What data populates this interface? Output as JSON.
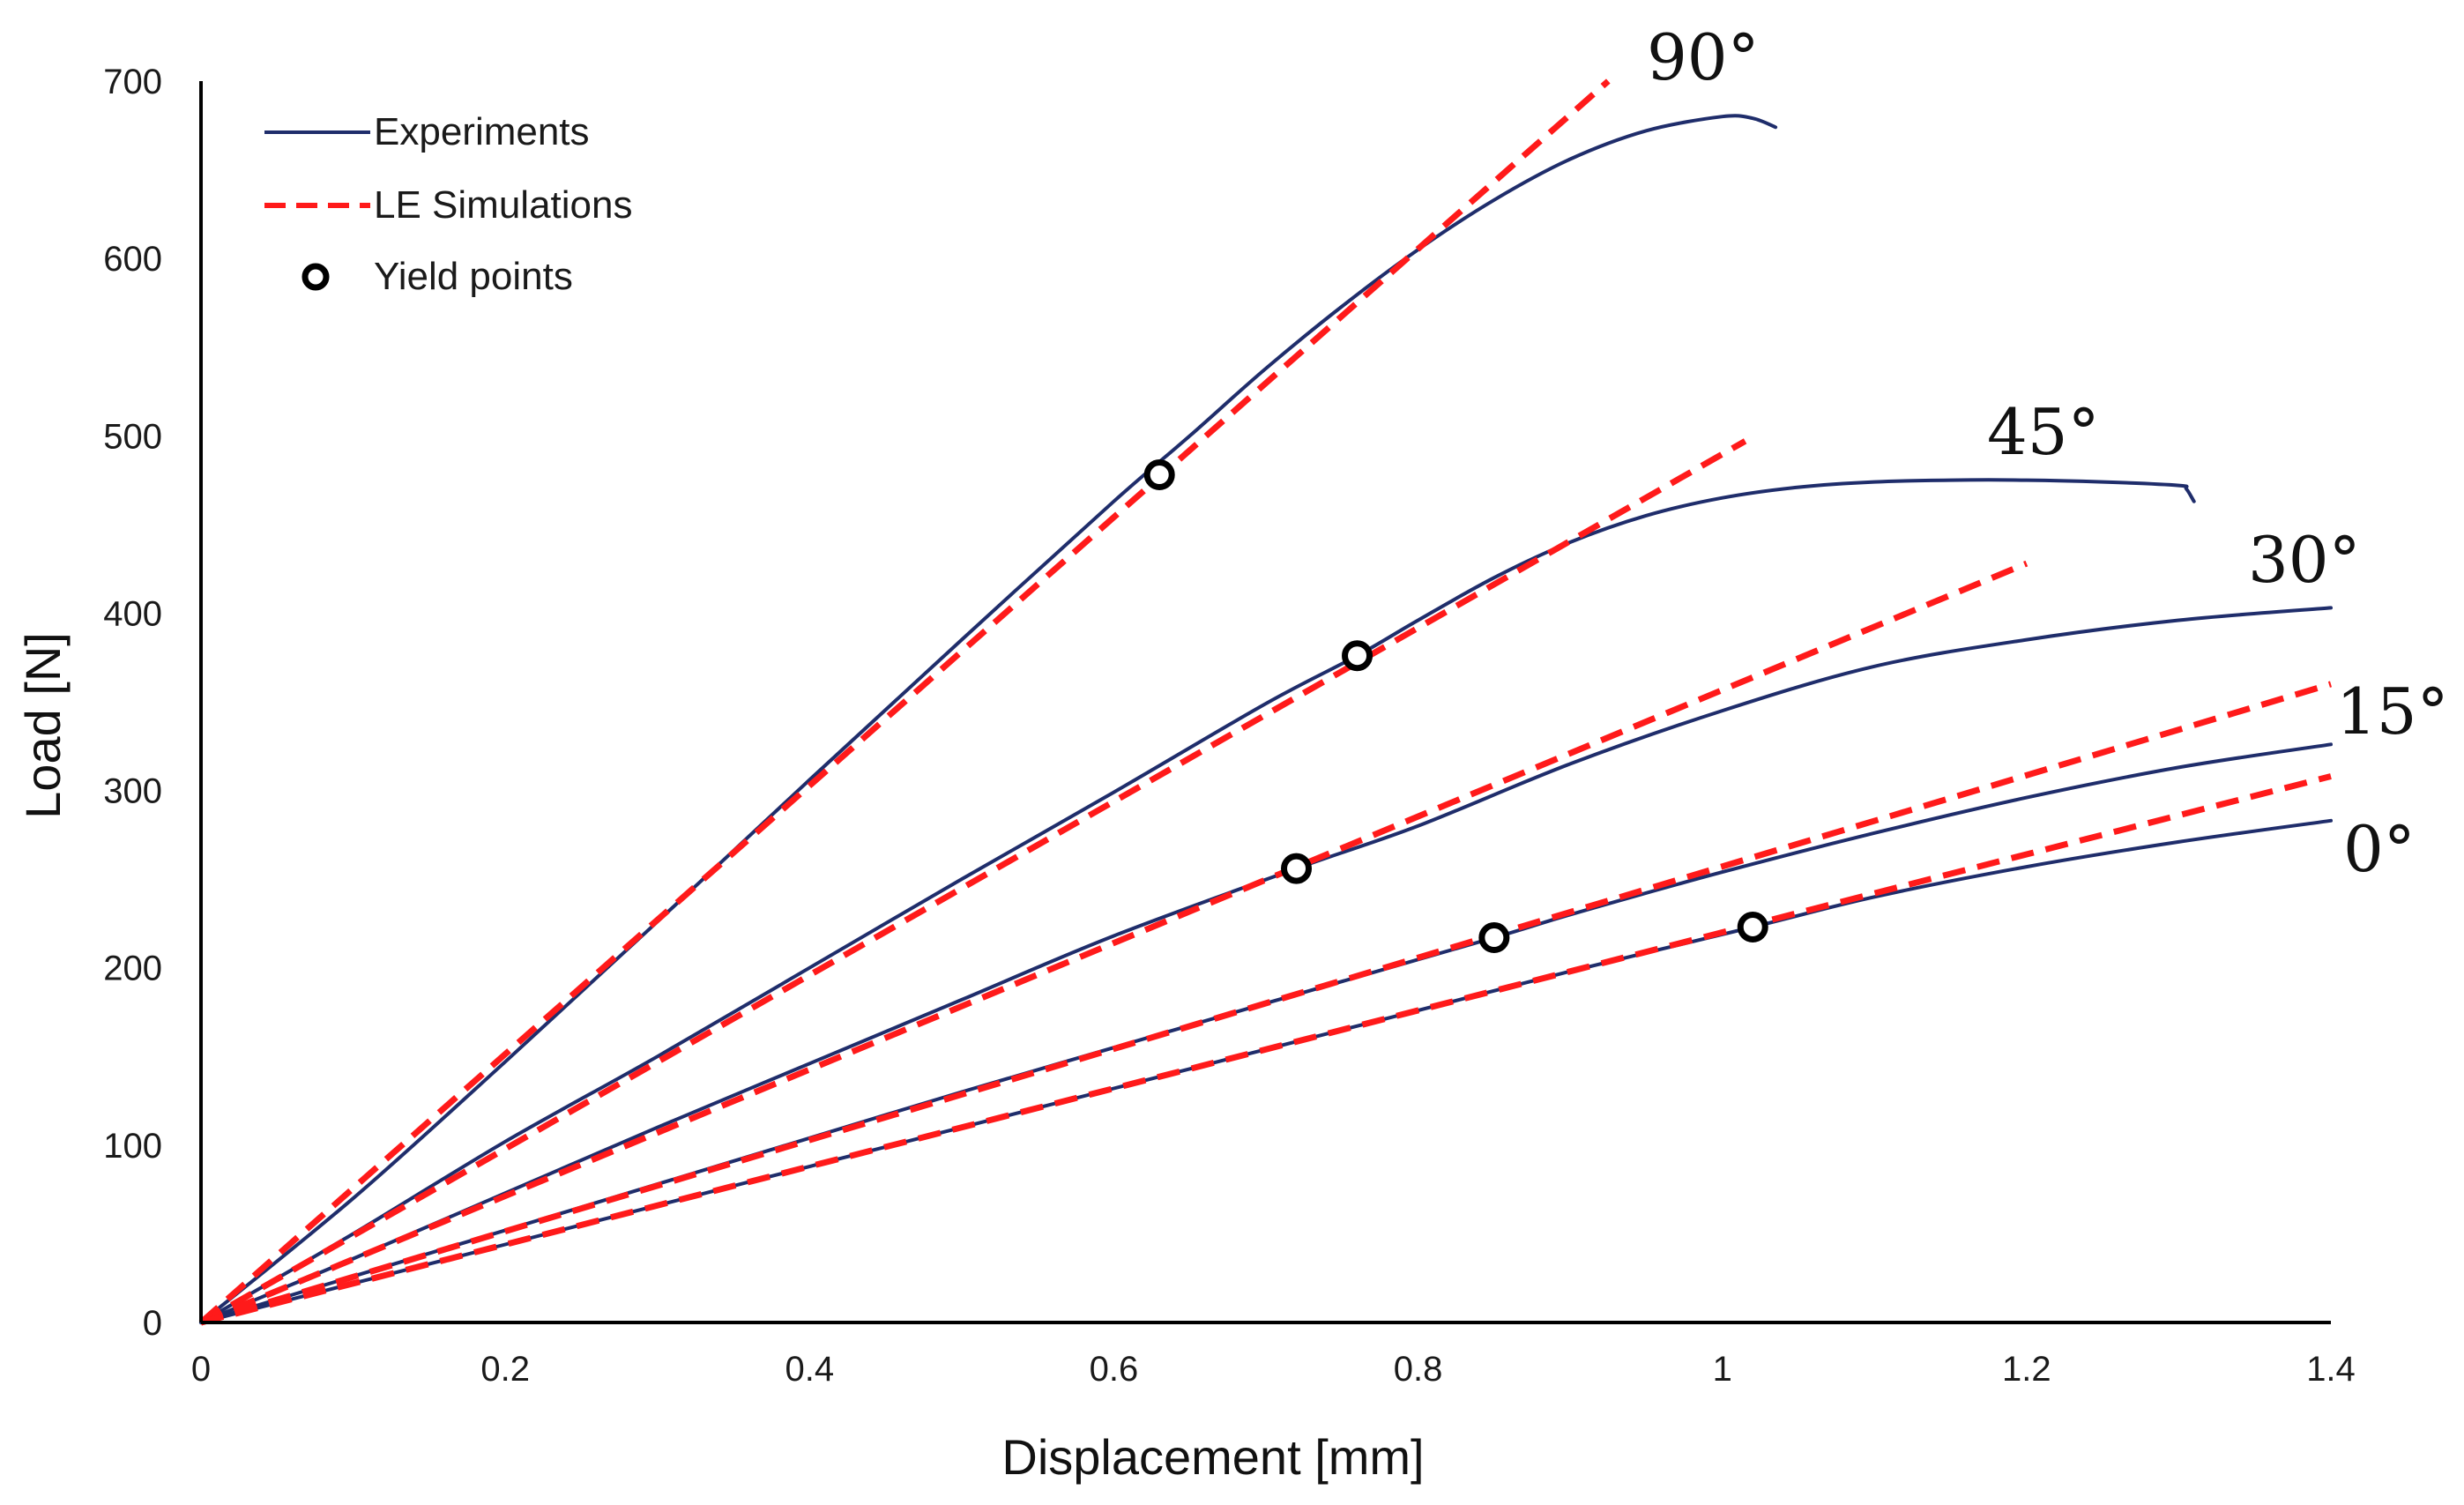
{
  "chart_data": {
    "type": "line",
    "title": "",
    "xlabel": "Displacement  [mm]",
    "ylabel": "Load [N]",
    "xlim": [
      0,
      1.4
    ],
    "ylim": [
      0,
      700
    ],
    "x_ticks": [
      "0",
      "0.2",
      "0.4",
      "0.6",
      "0.8",
      "1",
      "1.2",
      "1.4"
    ],
    "y_ticks": [
      "0",
      "100",
      "200",
      "300",
      "400",
      "500",
      "600",
      "700"
    ],
    "grid": false,
    "legend_position": "top-left",
    "legend": [
      {
        "label": "Experiments",
        "style": "solid",
        "color": "#1f2d6b"
      },
      {
        "label": "LE Simulations",
        "style": "dashed",
        "color": "#ff1a1a"
      },
      {
        "label": "Yield points",
        "style": "marker",
        "color": "#000000"
      }
    ],
    "colors": {
      "experiments": "#1f2d6b",
      "simulations": "#ff1a1a",
      "yield_marker": "#000000"
    },
    "series": [
      {
        "angle_label": "90°",
        "experiment": {
          "x": [
            0,
            0.1,
            0.2,
            0.3,
            0.4,
            0.5,
            0.6,
            0.65,
            0.7,
            0.75,
            0.8,
            0.85,
            0.9,
            0.95,
            1.0,
            1.02,
            1.035
          ],
          "y": [
            0,
            70,
            147,
            226,
            306,
            385,
            463,
            500,
            538,
            573,
            605,
            633,
            656,
            672,
            680,
            679,
            674
          ]
        },
        "simulation": {
          "x": [
            0,
            0.925
          ],
          "y": [
            0,
            700
          ]
        },
        "yield_point": {
          "x": 0.63,
          "y": 478
        }
      },
      {
        "angle_label": "45°",
        "experiment": {
          "x": [
            0,
            0.1,
            0.2,
            0.3,
            0.4,
            0.5,
            0.6,
            0.7,
            0.76,
            0.8,
            0.85,
            0.9,
            0.95,
            1.0,
            1.05,
            1.1,
            1.15,
            1.2,
            1.25,
            1.3,
            1.305,
            1.31
          ],
          "y": [
            0,
            50,
            102,
            150,
            200,
            250,
            299,
            349,
            376,
            396,
            420,
            440,
            455,
            465,
            471,
            474,
            475,
            475,
            474,
            472,
            470,
            463
          ]
        },
        "simulation": {
          "x": [
            0,
            1.015
          ],
          "y": [
            0,
            497
          ]
        },
        "yield_point": {
          "x": 0.76,
          "y": 376
        }
      },
      {
        "angle_label": "30°",
        "experiment": {
          "x": [
            0,
            0.1,
            0.2,
            0.3,
            0.4,
            0.5,
            0.6,
            0.72,
            0.8,
            0.9,
            1.0,
            1.1,
            1.2,
            1.3,
            1.4
          ],
          "y": [
            0,
            36,
            73,
            110,
            146,
            182,
            218,
            256,
            280,
            315,
            345,
            370,
            385,
            396,
            403
          ]
        },
        "simulation": {
          "x": [
            0,
            1.2
          ],
          "y": [
            0,
            428
          ]
        },
        "yield_point": {
          "x": 0.72,
          "y": 256
        }
      },
      {
        "angle_label": "15°",
        "experiment": {
          "x": [
            0,
            0.1,
            0.2,
            0.3,
            0.4,
            0.5,
            0.6,
            0.7,
            0.85,
            0.9,
            1.0,
            1.1,
            1.2,
            1.3,
            1.4
          ],
          "y": [
            0,
            26,
            52,
            78,
            104,
            130,
            155,
            180,
            217,
            230,
            254,
            276,
            296,
            313,
            326
          ]
        },
        "simulation": {
          "x": [
            0,
            1.4
          ],
          "y": [
            0,
            360
          ]
        },
        "yield_point": {
          "x": 0.85,
          "y": 217
        }
      },
      {
        "angle_label": "0°",
        "experiment": {
          "x": [
            0,
            0.1,
            0.2,
            0.3,
            0.4,
            0.5,
            0.6,
            0.7,
            0.8,
            0.9,
            1.02,
            1.1,
            1.2,
            1.3,
            1.4
          ],
          "y": [
            0,
            22,
            44,
            66,
            88,
            110,
            132,
            154,
            176,
            198,
            223,
            240,
            257,
            271,
            283
          ]
        },
        "simulation": {
          "x": [
            0,
            1.4
          ],
          "y": [
            0,
            308
          ]
        },
        "yield_point": {
          "x": 1.02,
          "y": 223
        }
      }
    ]
  }
}
